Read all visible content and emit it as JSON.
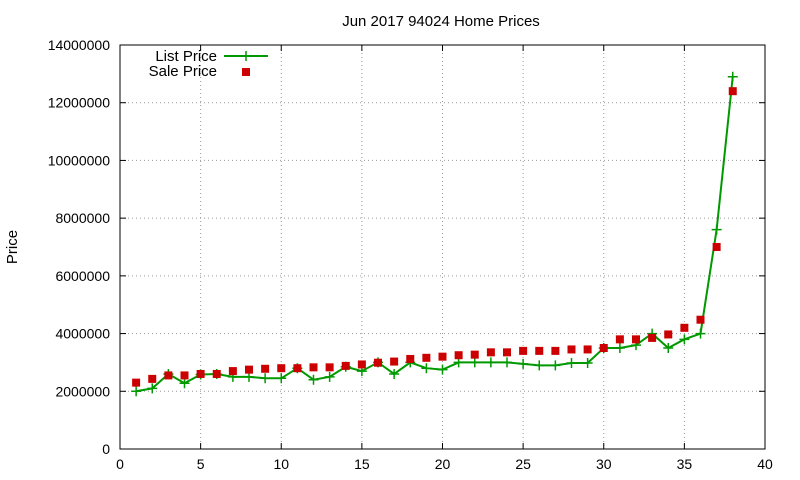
{
  "chart_data": {
    "type": "line",
    "title": "Jun 2017 94024 Home Prices",
    "xlabel": "",
    "ylabel": "Price",
    "xlim": [
      0,
      40
    ],
    "ylim": [
      0,
      14000000
    ],
    "x_ticks": [
      "0",
      "5",
      "10",
      "15",
      "20",
      "25",
      "30",
      "35",
      "40"
    ],
    "y_ticks": [
      "0",
      "2000000",
      "4000000",
      "6000000",
      "8000000",
      "10000000",
      "12000000",
      "14000000"
    ],
    "grid": true,
    "legend_position": "top-left",
    "series": [
      {
        "name": "List Price",
        "style": "line-with-plus-markers",
        "color": "#009900",
        "x": [
          1,
          2,
          3,
          4,
          5,
          6,
          7,
          8,
          9,
          10,
          11,
          12,
          13,
          14,
          15,
          16,
          17,
          18,
          19,
          20,
          21,
          22,
          23,
          24,
          25,
          26,
          27,
          28,
          29,
          30,
          31,
          32,
          33,
          34,
          35,
          36,
          37,
          38
        ],
        "values": [
          2000000,
          2100000,
          2600000,
          2280000,
          2580000,
          2600000,
          2500000,
          2500000,
          2450000,
          2450000,
          2800000,
          2400000,
          2500000,
          2850000,
          2700000,
          3000000,
          2600000,
          3000000,
          2800000,
          2750000,
          3000000,
          3000000,
          3000000,
          3000000,
          2950000,
          2900000,
          2900000,
          2980000,
          2980000,
          3500000,
          3500000,
          3600000,
          4000000,
          3500000,
          3800000,
          4000000,
          7600000,
          12900000
        ]
      },
      {
        "name": "Sale Price",
        "style": "square-markers",
        "color": "#cc0000",
        "x": [
          1,
          2,
          3,
          4,
          5,
          6,
          7,
          8,
          9,
          10,
          11,
          12,
          13,
          14,
          15,
          16,
          17,
          18,
          19,
          20,
          21,
          22,
          23,
          24,
          25,
          26,
          27,
          28,
          29,
          30,
          31,
          32,
          33,
          34,
          35,
          36,
          37,
          38
        ],
        "values": [
          2300000,
          2430000,
          2550000,
          2550000,
          2600000,
          2600000,
          2700000,
          2750000,
          2780000,
          2800000,
          2800000,
          2830000,
          2830000,
          2880000,
          2930000,
          2990000,
          3030000,
          3120000,
          3160000,
          3200000,
          3250000,
          3270000,
          3350000,
          3350000,
          3400000,
          3400000,
          3400000,
          3450000,
          3450000,
          3500000,
          3800000,
          3800000,
          3850000,
          3970000,
          4200000,
          4480000,
          7000000,
          12400000
        ]
      }
    ]
  }
}
